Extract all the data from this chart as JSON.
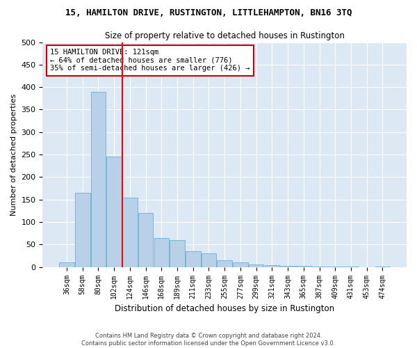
{
  "title1": "15, HAMILTON DRIVE, RUSTINGTON, LITTLEHAMPTON, BN16 3TQ",
  "title2": "Size of property relative to detached houses in Rustington",
  "xlabel": "Distribution of detached houses by size in Rustington",
  "ylabel": "Number of detached properties",
  "categories": [
    "36sqm",
    "58sqm",
    "80sqm",
    "102sqm",
    "124sqm",
    "146sqm",
    "168sqm",
    "189sqm",
    "211sqm",
    "233sqm",
    "255sqm",
    "277sqm",
    "299sqm",
    "321sqm",
    "343sqm",
    "365sqm",
    "387sqm",
    "409sqm",
    "431sqm",
    "453sqm",
    "474sqm"
  ],
  "values": [
    10,
    165,
    390,
    245,
    155,
    120,
    65,
    60,
    35,
    30,
    15,
    10,
    5,
    4,
    3,
    2,
    1,
    1,
    1,
    0,
    1
  ],
  "bar_color": "#b8d0e8",
  "bar_edge_color": "#6baed6",
  "bar_linewidth": 0.6,
  "annotation_text": "15 HAMILTON DRIVE: 121sqm\n← 64% of detached houses are smaller (776)\n35% of semi-detached houses are larger (426) →",
  "annotation_box_color": "white",
  "annotation_box_edge_color": "#cc0000",
  "ylim": [
    0,
    500
  ],
  "yticks": [
    0,
    50,
    100,
    150,
    200,
    250,
    300,
    350,
    400,
    450,
    500
  ],
  "background_color": "#dce9f5",
  "footer1": "Contains HM Land Registry data © Crown copyright and database right 2024.",
  "footer2": "Contains public sector information licensed under the Open Government Licence v3.0."
}
